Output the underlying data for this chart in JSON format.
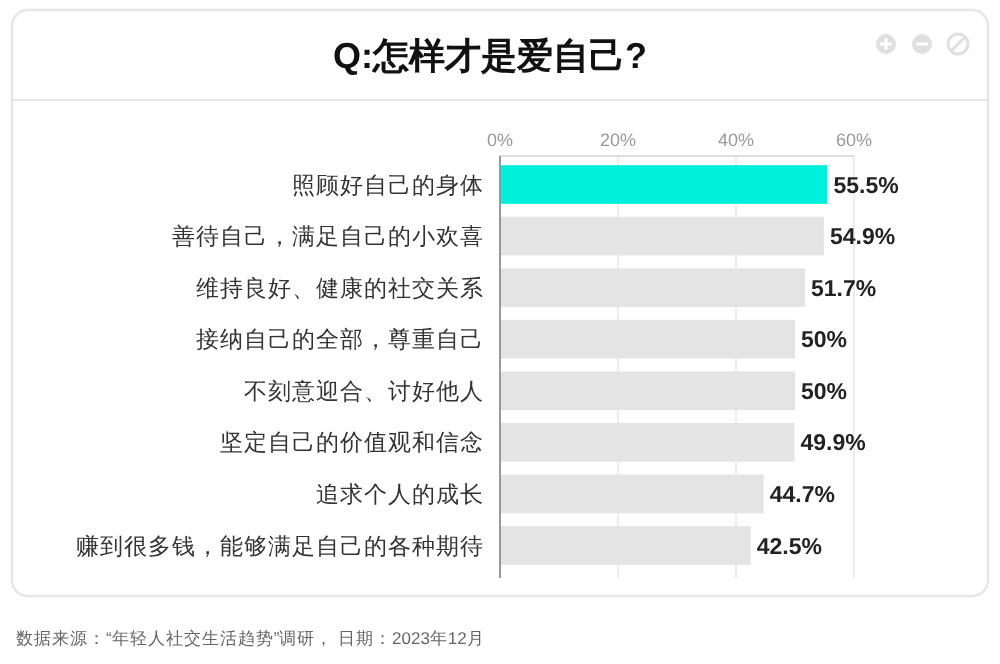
{
  "chart_data": {
    "type": "bar",
    "orientation": "horizontal",
    "title": "Q:怎样才是爱自己?",
    "categories": [
      "照顾好自己的身体",
      "善待自己，满足自己的小欢喜",
      "维持良好、健康的社交关系",
      "接纳自己的全部，尊重自己",
      "不刻意迎合、讨好他人",
      "坚定自己的价值观和信念",
      "追求个人的成长",
      "赚到很多钱，能够满足自己的各种期待"
    ],
    "values": [
      55.5,
      54.9,
      51.7,
      50,
      50,
      49.9,
      44.7,
      42.5
    ],
    "colors": [
      "#00f0dc",
      "#e4e4e4",
      "#e4e4e4",
      "#e4e4e4",
      "#e4e4e4",
      "#e4e4e4",
      "#e4e4e4",
      "#e4e4e4"
    ],
    "value_labels": [
      "55.5%",
      "54.9%",
      "51.7%",
      "50%",
      "50%",
      "49.9%",
      "44.7%",
      "42.5%"
    ],
    "xlim": [
      0,
      60
    ],
    "xticks": [
      {
        "value": 0,
        "label": "0%"
      },
      {
        "value": 20,
        "label": "20%"
      },
      {
        "value": 40,
        "label": "40%"
      },
      {
        "value": 60,
        "label": "60%"
      }
    ],
    "grid": "x",
    "annotations": [
      "数据来源：“年轻人社交生活趋势”调研， 日期：2023年12月"
    ]
  }
}
